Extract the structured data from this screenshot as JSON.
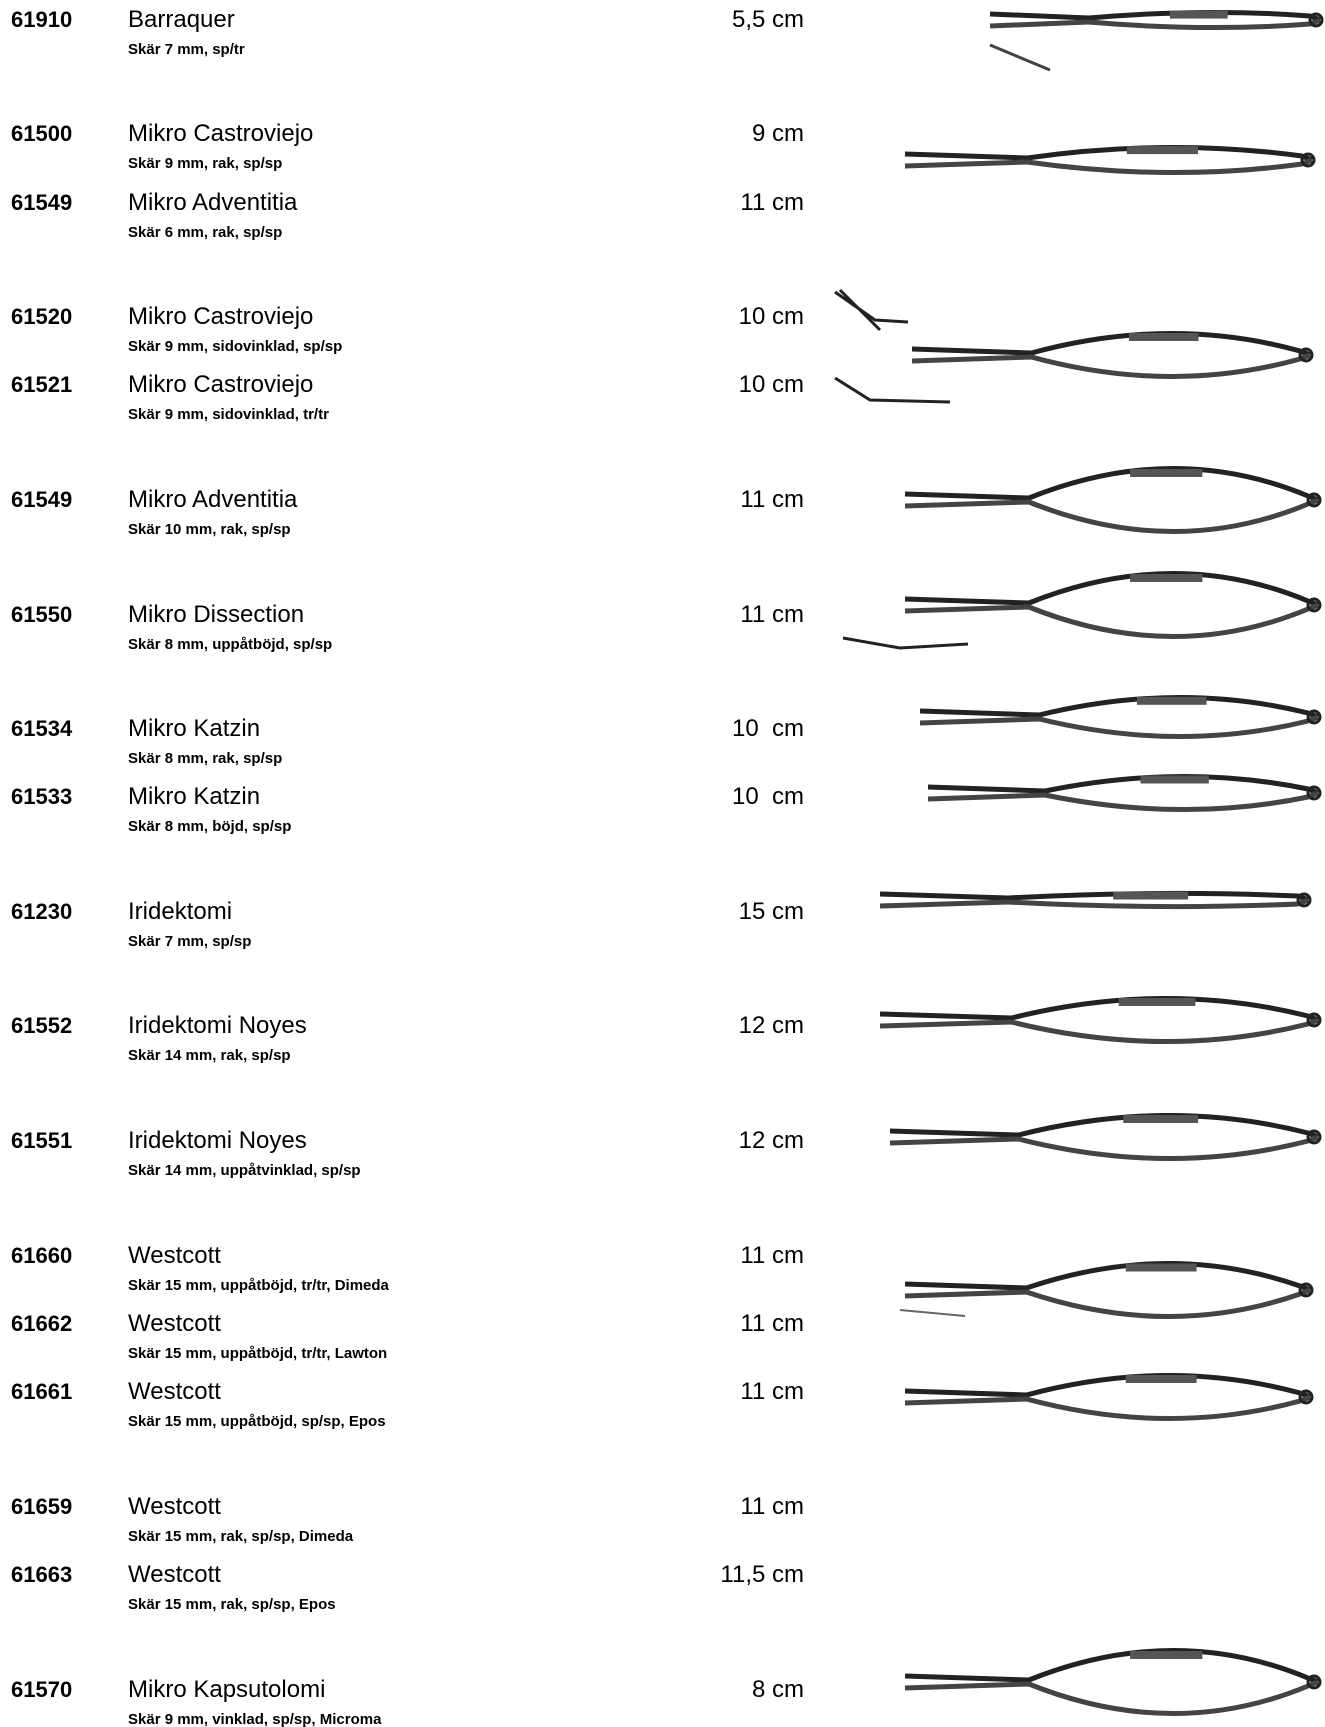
{
  "items": [
    {
      "code": "61910",
      "name": "Barraquer",
      "desc": "Skär 7 mm, sp/tr",
      "length": "5,5 cm"
    },
    {
      "code": "61500",
      "name": "Mikro Castroviejo",
      "desc": "Skär 9 mm, rak, sp/sp",
      "length": "9 cm"
    },
    {
      "code": "61549",
      "name": "Mikro Adventitia",
      "desc": "Skär 6 mm, rak, sp/sp",
      "length": "11 cm"
    },
    {
      "code": "61520",
      "name": "Mikro Castroviejo",
      "desc": "Skär 9 mm, sidovinklad, sp/sp",
      "length": "10 cm"
    },
    {
      "code": "61521",
      "name": "Mikro Castroviejo",
      "desc": "Skär 9 mm, sidovinklad, tr/tr",
      "length": "10 cm"
    },
    {
      "code": "61549",
      "name": "Mikro Adventitia",
      "desc": "Skär 10 mm, rak, sp/sp",
      "length": "11 cm"
    },
    {
      "code": "61550",
      "name": "Mikro Dissection",
      "desc": "Skär 8 mm, uppåtböjd, sp/sp",
      "length": "11 cm"
    },
    {
      "code": "61534",
      "name": "Mikro Katzin",
      "desc": "Skär 8 mm, rak, sp/sp",
      "length": "10  cm"
    },
    {
      "code": "61533",
      "name": "Mikro Katzin",
      "desc": "Skär 8 mm, böjd, sp/sp",
      "length": "10  cm"
    },
    {
      "code": "61230",
      "name": "Iridektomi",
      "desc": "Skär 7 mm, sp/sp",
      "length": "15 cm"
    },
    {
      "code": "61552",
      "name": "Iridektomi Noyes",
      "desc": "Skär 14 mm, rak, sp/sp",
      "length": "12 cm"
    },
    {
      "code": "61551",
      "name": "Iridektomi Noyes",
      "desc": "Skär 14 mm, uppåtvinklad, sp/sp",
      "length": "12 cm"
    },
    {
      "code": "61660",
      "name": "Westcott",
      "desc": "Skär 15 mm, uppåtböjd, tr/tr, Dimeda",
      "length": "11 cm"
    },
    {
      "code": "61662",
      "name": "Westcott",
      "desc": "Skär 15 mm, uppåtböjd, tr/tr, Lawton",
      "length": "11 cm"
    },
    {
      "code": "61661",
      "name": "Westcott",
      "desc": "Skär 15 mm, uppåtböjd, sp/sp, Epos",
      "length": "11 cm"
    },
    {
      "code": "61659",
      "name": "Westcott",
      "desc": "Skär 15 mm, rak, sp/sp, Dimeda",
      "length": "11 cm"
    },
    {
      "code": "61663",
      "name": "Westcott",
      "desc": "Skär 15 mm, rak, sp/sp, Epos",
      "length": "11,5 cm"
    },
    {
      "code": "61570",
      "name": "Mikro Kapsutolomi",
      "desc": "Skär 9 mm, vinklad, sp/sp, Microma",
      "length": "8 cm"
    }
  ]
}
